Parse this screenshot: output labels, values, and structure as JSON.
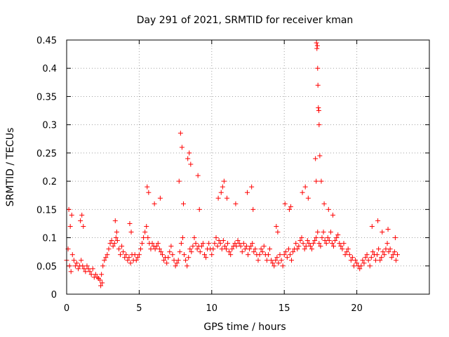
{
  "chart_data": {
    "type": "scatter",
    "title": "Day 291 of 2021, SRMTID for receiver kman",
    "xlabel": "GPS time / hours",
    "ylabel": "SRMTID / TECUs",
    "xlim": [
      0,
      25
    ],
    "ylim": [
      0,
      0.45
    ],
    "xticks": [
      0,
      5,
      10,
      15,
      20
    ],
    "xtick_labels": [
      "0",
      "5",
      "10",
      "15",
      "20"
    ],
    "yticks": [
      0,
      0.05,
      0.1,
      0.15,
      0.2,
      0.25,
      0.3,
      0.35,
      0.4,
      0.45
    ],
    "ytick_labels": [
      "0",
      "0.05",
      "0.1",
      "0.15",
      "0.2",
      "0.25",
      "0.3",
      "0.35",
      "0.4",
      "0.45"
    ],
    "grid": true,
    "marker": "+",
    "marker_color": "#ff0000",
    "series": [
      {
        "name": "SRMTID",
        "x": [
          0.0,
          0.1,
          0.2,
          0.3,
          0.4,
          0.5,
          0.6,
          0.7,
          0.8,
          0.9,
          1.0,
          1.1,
          1.2,
          1.3,
          1.4,
          1.5,
          1.6,
          1.7,
          1.8,
          1.9,
          2.0,
          2.1,
          2.2,
          2.3,
          2.4,
          2.5,
          2.6,
          2.7,
          2.8,
          2.9,
          3.0,
          3.1,
          3.2,
          3.3,
          3.4,
          3.5,
          3.6,
          3.7,
          3.8,
          3.9,
          4.0,
          4.1,
          4.2,
          4.3,
          4.4,
          4.5,
          4.6,
          4.7,
          4.8,
          4.9,
          5.0,
          5.1,
          5.2,
          5.3,
          5.4,
          5.5,
          5.6,
          5.7,
          5.8,
          5.9,
          6.0,
          6.1,
          6.2,
          6.3,
          6.4,
          6.5,
          6.6,
          6.7,
          6.8,
          6.9,
          7.0,
          7.1,
          7.2,
          7.3,
          7.4,
          7.5,
          7.6,
          7.7,
          7.8,
          7.9,
          8.0,
          8.1,
          8.2,
          8.3,
          8.4,
          8.5,
          8.6,
          8.7,
          8.8,
          8.9,
          9.0,
          9.1,
          9.2,
          9.3,
          9.4,
          9.5,
          9.6,
          9.7,
          9.8,
          9.9,
          10.0,
          10.1,
          10.2,
          10.3,
          10.4,
          10.5,
          10.6,
          10.7,
          10.8,
          10.9,
          11.0,
          11.1,
          11.2,
          11.3,
          11.4,
          11.5,
          11.6,
          11.7,
          11.8,
          11.9,
          12.0,
          12.1,
          12.2,
          12.3,
          12.4,
          12.5,
          12.6,
          12.7,
          12.8,
          12.9,
          13.0,
          13.1,
          13.2,
          13.3,
          13.4,
          13.5,
          13.6,
          13.7,
          13.8,
          13.9,
          14.0,
          14.1,
          14.2,
          14.3,
          14.4,
          14.5,
          14.6,
          14.7,
          14.8,
          14.9,
          15.0,
          15.1,
          15.2,
          15.3,
          15.4,
          15.5,
          15.6,
          15.7,
          15.8,
          15.9,
          16.0,
          16.1,
          16.2,
          16.3,
          16.4,
          16.5,
          16.6,
          16.7,
          16.8,
          16.9,
          17.0,
          17.1,
          17.2,
          17.3,
          17.4,
          17.5,
          17.6,
          17.7,
          17.8,
          17.9,
          18.0,
          18.1,
          18.2,
          18.3,
          18.4,
          18.5,
          18.6,
          18.7,
          18.8,
          18.9,
          19.0,
          19.1,
          19.2,
          19.3,
          19.4,
          19.5,
          19.6,
          19.7,
          19.8,
          19.9,
          20.0,
          20.1,
          20.2,
          20.3,
          20.4,
          20.5,
          20.6,
          20.7,
          20.8,
          20.9,
          21.0,
          21.1,
          21.2,
          21.3,
          21.4,
          21.5,
          21.6,
          21.7,
          21.8,
          21.9,
          22.0,
          22.1,
          22.2,
          22.3,
          22.4,
          22.5,
          22.6,
          22.7,
          22.8,
          0.15,
          0.25,
          0.35,
          0.95,
          1.05,
          1.15,
          2.35,
          2.45,
          3.35,
          3.45,
          4.35,
          4.45,
          5.55,
          5.65,
          6.05,
          6.45,
          7.75,
          7.85,
          7.95,
          8.05,
          8.35,
          8.45,
          8.55,
          9.05,
          9.15,
          10.45,
          10.65,
          10.75,
          10.85,
          11.05,
          11.65,
          12.45,
          12.75,
          12.85,
          14.45,
          14.55,
          15.05,
          15.35,
          15.45,
          16.25,
          16.45,
          16.65,
          17.15,
          17.2,
          17.22,
          17.25,
          17.28,
          17.3,
          17.32,
          17.35,
          17.38,
          17.4,
          17.45,
          17.55,
          17.75,
          18.05,
          18.35,
          21.05,
          21.45,
          21.75,
          22.15,
          22.65
        ],
        "y": [
          0.06,
          0.08,
          0.05,
          0.04,
          0.07,
          0.06,
          0.05,
          0.055,
          0.045,
          0.05,
          0.06,
          0.05,
          0.045,
          0.04,
          0.05,
          0.045,
          0.04,
          0.035,
          0.045,
          0.03,
          0.035,
          0.03,
          0.028,
          0.025,
          0.035,
          0.05,
          0.06,
          0.065,
          0.07,
          0.08,
          0.09,
          0.095,
          0.085,
          0.09,
          0.1,
          0.095,
          0.08,
          0.07,
          0.085,
          0.075,
          0.065,
          0.07,
          0.06,
          0.065,
          0.055,
          0.07,
          0.06,
          0.07,
          0.06,
          0.065,
          0.07,
          0.08,
          0.09,
          0.1,
          0.11,
          0.12,
          0.1,
          0.09,
          0.08,
          0.09,
          0.085,
          0.08,
          0.085,
          0.09,
          0.08,
          0.075,
          0.07,
          0.06,
          0.065,
          0.055,
          0.065,
          0.075,
          0.085,
          0.07,
          0.06,
          0.05,
          0.055,
          0.06,
          0.075,
          0.09,
          0.1,
          0.07,
          0.06,
          0.05,
          0.065,
          0.08,
          0.075,
          0.085,
          0.1,
          0.09,
          0.08,
          0.085,
          0.075,
          0.085,
          0.09,
          0.07,
          0.065,
          0.08,
          0.09,
          0.08,
          0.07,
          0.08,
          0.09,
          0.1,
          0.085,
          0.095,
          0.09,
          0.08,
          0.095,
          0.085,
          0.08,
          0.09,
          0.075,
          0.07,
          0.08,
          0.085,
          0.09,
          0.085,
          0.095,
          0.09,
          0.085,
          0.075,
          0.09,
          0.08,
          0.085,
          0.07,
          0.08,
          0.085,
          0.09,
          0.075,
          0.08,
          0.07,
          0.06,
          0.07,
          0.08,
          0.075,
          0.085,
          0.07,
          0.06,
          0.07,
          0.08,
          0.06,
          0.055,
          0.05,
          0.06,
          0.065,
          0.055,
          0.07,
          0.06,
          0.05,
          0.07,
          0.075,
          0.065,
          0.08,
          0.07,
          0.06,
          0.075,
          0.08,
          0.09,
          0.08,
          0.085,
          0.095,
          0.1,
          0.09,
          0.08,
          0.085,
          0.095,
          0.09,
          0.085,
          0.08,
          0.09,
          0.095,
          0.1,
          0.11,
          0.09,
          0.085,
          0.1,
          0.11,
          0.095,
          0.09,
          0.1,
          0.095,
          0.11,
          0.09,
          0.085,
          0.095,
          0.1,
          0.105,
          0.09,
          0.085,
          0.08,
          0.09,
          0.07,
          0.075,
          0.08,
          0.07,
          0.06,
          0.065,
          0.05,
          0.06,
          0.055,
          0.05,
          0.045,
          0.05,
          0.06,
          0.055,
          0.065,
          0.07,
          0.06,
          0.05,
          0.065,
          0.075,
          0.07,
          0.06,
          0.07,
          0.08,
          0.06,
          0.065,
          0.075,
          0.07,
          0.08,
          0.09,
          0.075,
          0.08,
          0.065,
          0.07,
          0.075,
          0.06,
          0.07,
          0.15,
          0.12,
          0.14,
          0.13,
          0.14,
          0.12,
          0.015,
          0.02,
          0.13,
          0.11,
          0.125,
          0.11,
          0.19,
          0.18,
          0.16,
          0.17,
          0.2,
          0.285,
          0.26,
          0.16,
          0.24,
          0.25,
          0.23,
          0.21,
          0.15,
          0.17,
          0.18,
          0.19,
          0.2,
          0.17,
          0.16,
          0.18,
          0.19,
          0.15,
          0.12,
          0.11,
          0.16,
          0.15,
          0.155,
          0.18,
          0.19,
          0.17,
          0.24,
          0.2,
          0.445,
          0.435,
          0.44,
          0.4,
          0.37,
          0.33,
          0.325,
          0.3,
          0.245,
          0.2,
          0.16,
          0.15,
          0.14,
          0.12,
          0.13,
          0.11,
          0.115,
          0.1
        ]
      }
    ]
  }
}
